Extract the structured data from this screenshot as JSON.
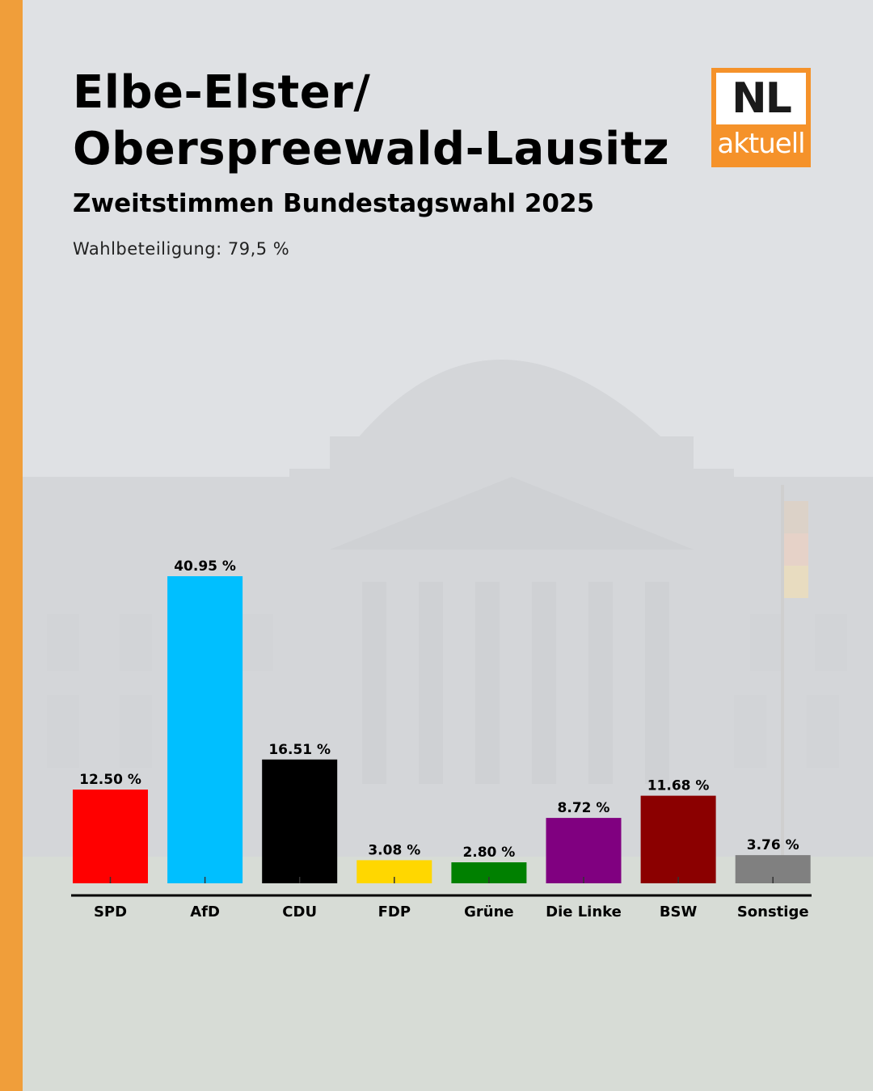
{
  "header": {
    "title": "Elbe-Elster/\nOberspreewald-Lausitz",
    "subtitle": "Zweitstimmen Bundestagswahl 2025",
    "turnout": "Wahlbeteiligung: 79,5 %"
  },
  "logo": {
    "main": "NL",
    "sub": "aktuell",
    "color": "#f5922a"
  },
  "colors": {
    "accent_bar": "#f09e3a"
  },
  "chart_data": {
    "type": "bar",
    "title": "",
    "xlabel": "",
    "ylabel": "",
    "ylim": [
      0,
      42
    ],
    "grid": false,
    "categories": [
      "SPD",
      "AfD",
      "CDU",
      "FDP",
      "Grüne",
      "Die Linke",
      "BSW",
      "Sonstige"
    ],
    "values": [
      12.5,
      40.95,
      16.51,
      3.08,
      2.8,
      8.72,
      11.68,
      3.76
    ],
    "value_labels": [
      "12.50 %",
      "40.95 %",
      "16.51 %",
      "3.08 %",
      "2.80 %",
      "8.72 %",
      "11.68 %",
      "3.76 %"
    ],
    "colors": [
      "#ff0000",
      "#00bfff",
      "#000000",
      "#ffd700",
      "#008000",
      "#800080",
      "#8b0000",
      "#808080"
    ]
  }
}
